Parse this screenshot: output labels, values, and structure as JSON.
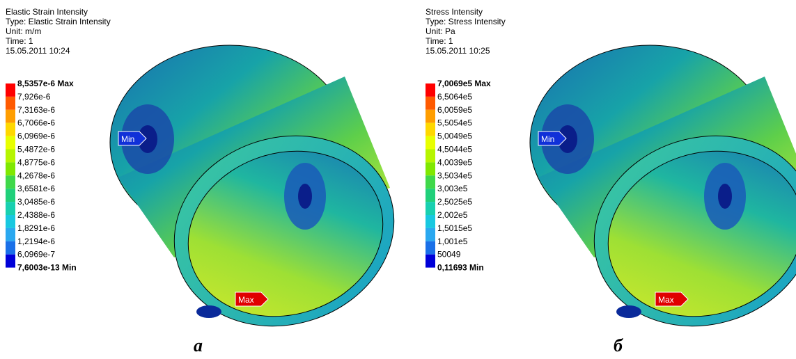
{
  "panels": [
    {
      "header": [
        "Elastic Strain Intensity",
        "Type: Elastic Strain Intensity",
        "Unit: m/m",
        "Time: 1",
        "15.05.2011 10:24"
      ],
      "legend": [
        "8,5357e-6 Max",
        "7,926e-6",
        "7,3163e-6",
        "6,7066e-6",
        "6,0969e-6",
        "5,4872e-6",
        "4,8775e-6",
        "4,2678e-6",
        "3,6581e-6",
        "3,0485e-6",
        "2,4388e-6",
        "1,8291e-6",
        "1,2194e-6",
        "6,0969e-7",
        "7,6003e-13 Min"
      ],
      "min_label": "Min",
      "max_label": "Max",
      "caption": "а"
    },
    {
      "header": [
        "Stress Intensity",
        "Type: Stress Intensity",
        "Unit: Pa",
        "Time: 1",
        "15.05.2011 10:25"
      ],
      "legend": [
        "7,0069e5 Max",
        "6,5064e5",
        "6,0059e5",
        "5,5054e5",
        "5,0049e5",
        "4,5044e5",
        "4,0039e5",
        "3,5034e5",
        "3,003e5",
        "2,5025e5",
        "2,002e5",
        "1,5015e5",
        "1,001e5",
        "50049",
        "0,11693 Min"
      ],
      "min_label": "Min",
      "max_label": "Max",
      "caption": "б"
    }
  ]
}
